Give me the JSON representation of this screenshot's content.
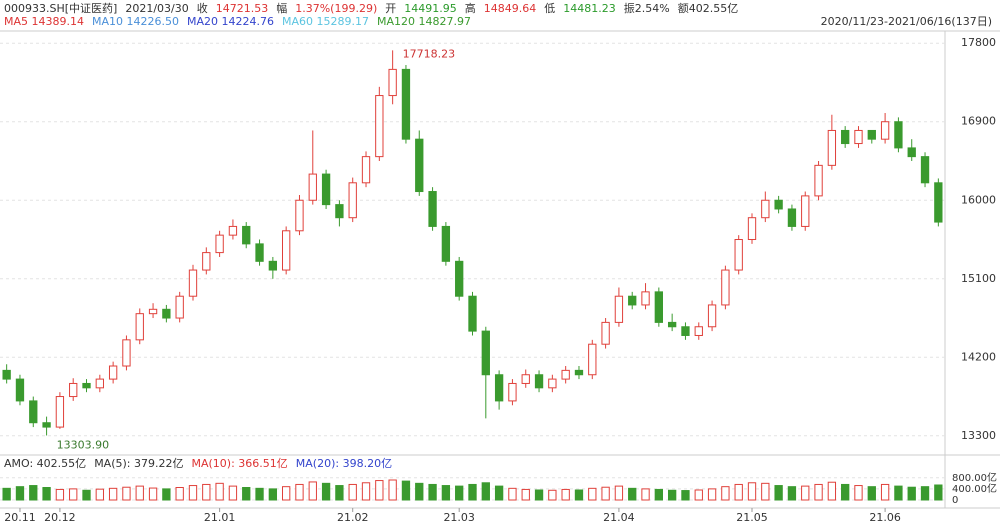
{
  "chart_data": {
    "type": "candlestick",
    "header": [
      {
        "text": "000933.SH[中证医药]",
        "color": "#333"
      },
      {
        "text": "2021/03/30",
        "color": "#333"
      },
      {
        "text": "收",
        "color": "#333"
      },
      {
        "text": "14721.53",
        "color": "#d33"
      },
      {
        "text": "幅",
        "color": "#333"
      },
      {
        "text": "1.37%(199.29)",
        "color": "#d33"
      },
      {
        "text": "开",
        "color": "#333"
      },
      {
        "text": "14491.95",
        "color": "#2a9a2a"
      },
      {
        "text": "高",
        "color": "#333"
      },
      {
        "text": "14849.64",
        "color": "#d33"
      },
      {
        "text": "低",
        "color": "#333"
      },
      {
        "text": "14481.23",
        "color": "#2a9a2a"
      },
      {
        "text": "振2.54%",
        "color": "#333"
      },
      {
        "text": "额402.55亿",
        "color": "#333"
      }
    ],
    "ma_legend": [
      {
        "text": "MA5 14389.14",
        "color": "#d33"
      },
      {
        "text": "MA10 14226.50",
        "color": "#4a8fd8"
      },
      {
        "text": "MA20 14224.76",
        "color": "#3344cc"
      },
      {
        "text": "MA60 15289.17",
        "color": "#5bc4e0"
      },
      {
        "text": "MA120 14827.97",
        "color": "#3a9a2e"
      }
    ],
    "range": "2020/11/23-2021/06/16(137日)",
    "volume_legend": [
      {
        "text": "AMO: 402.55亿",
        "color": "#333"
      },
      {
        "text": "MA(5): 379.22亿",
        "color": "#333"
      },
      {
        "text": "MA(10): 366.51亿",
        "color": "#d33"
      },
      {
        "text": "MA(20): 398.20亿",
        "color": "#3344cc"
      }
    ],
    "categories": [
      null,
      "20.11",
      null,
      null,
      "20.12",
      null,
      null,
      null,
      null,
      null,
      null,
      null,
      null,
      null,
      null,
      null,
      "21.01",
      null,
      null,
      null,
      null,
      null,
      null,
      null,
      null,
      null,
      "21.02",
      null,
      null,
      null,
      null,
      null,
      null,
      null,
      "21.03",
      null,
      null,
      null,
      null,
      null,
      null,
      null,
      null,
      null,
      null,
      null,
      "21.04",
      null,
      null,
      null,
      null,
      null,
      null,
      null,
      null,
      null,
      "21.05",
      null,
      null,
      null,
      null,
      null,
      null,
      null,
      null,
      null,
      "21.06",
      null,
      null,
      null,
      null
    ],
    "candles": [
      [
        14050,
        14120,
        13900,
        13950
      ],
      [
        13950,
        14000,
        13650,
        13700
      ],
      [
        13700,
        13750,
        13400,
        13450
      ],
      [
        13450,
        13520,
        13303.9,
        13400
      ],
      [
        13400,
        13800,
        13380,
        13750
      ],
      [
        13750,
        13960,
        13700,
        13900
      ],
      [
        13900,
        13950,
        13800,
        13850
      ],
      [
        13850,
        14000,
        13800,
        13950
      ],
      [
        13950,
        14150,
        13900,
        14100
      ],
      [
        14100,
        14450,
        14050,
        14400
      ],
      [
        14400,
        14760,
        14350,
        14700
      ],
      [
        14700,
        14820,
        14650,
        14750
      ],
      [
        14750,
        14800,
        14600,
        14650
      ],
      [
        14650,
        14950,
        14600,
        14900
      ],
      [
        14900,
        15260,
        14850,
        15200
      ],
      [
        15200,
        15460,
        15150,
        15400
      ],
      [
        15400,
        15650,
        15350,
        15600
      ],
      [
        15600,
        15780,
        15550,
        15700
      ],
      [
        15700,
        15750,
        15450,
        15500
      ],
      [
        15500,
        15550,
        15250,
        15300
      ],
      [
        15300,
        15350,
        15100,
        15200
      ],
      [
        15200,
        15700,
        15150,
        15650
      ],
      [
        15650,
        16060,
        15600,
        16000
      ],
      [
        16000,
        16800,
        15950,
        16300
      ],
      [
        16300,
        16350,
        15900,
        15950
      ],
      [
        15950,
        16000,
        15700,
        15800
      ],
      [
        15800,
        16260,
        15750,
        16200
      ],
      [
        16200,
        16560,
        16150,
        16500
      ],
      [
        16500,
        17300,
        16450,
        17200
      ],
      [
        17200,
        17718.23,
        17100,
        17500
      ],
      [
        17500,
        17550,
        16650,
        16700
      ],
      [
        16700,
        16800,
        16050,
        16100
      ],
      [
        16100,
        16150,
        15650,
        15700
      ],
      [
        15700,
        15750,
        15250,
        15300
      ],
      [
        15300,
        15350,
        14850,
        14900
      ],
      [
        14900,
        14950,
        14450,
        14500
      ],
      [
        14500,
        14550,
        13500,
        14000
      ],
      [
        14000,
        14050,
        13600,
        13700
      ],
      [
        13700,
        13950,
        13650,
        13900
      ],
      [
        13900,
        14060,
        13850,
        14000
      ],
      [
        14000,
        14050,
        13800,
        13850
      ],
      [
        13850,
        14000,
        13800,
        13950
      ],
      [
        13950,
        14100,
        13900,
        14050
      ],
      [
        14050,
        14100,
        13950,
        14000
      ],
      [
        14000,
        14400,
        13950,
        14350
      ],
      [
        14350,
        14650,
        14300,
        14600
      ],
      [
        14600,
        15000,
        14550,
        14900
      ],
      [
        14900,
        14950,
        14750,
        14800
      ],
      [
        14800,
        15050,
        14750,
        14950
      ],
      [
        14950,
        15000,
        14550,
        14600
      ],
      [
        14600,
        14700,
        14500,
        14550
      ],
      [
        14550,
        14600,
        14400,
        14450
      ],
      [
        14450,
        14600,
        14400,
        14550
      ],
      [
        14550,
        14850,
        14500,
        14800
      ],
      [
        14800,
        15250,
        14750,
        15200
      ],
      [
        15200,
        15600,
        15150,
        15550
      ],
      [
        15550,
        15850,
        15500,
        15800
      ],
      [
        15800,
        16100,
        15750,
        16000
      ],
      [
        16000,
        16050,
        15850,
        15900
      ],
      [
        15900,
        15950,
        15650,
        15700
      ],
      [
        15700,
        16100,
        15650,
        16050
      ],
      [
        16050,
        16450,
        16000,
        16400
      ],
      [
        16400,
        16980,
        16350,
        16800
      ],
      [
        16800,
        16850,
        16600,
        16650
      ],
      [
        16650,
        16850,
        16600,
        16800
      ],
      [
        16800,
        16800,
        16650,
        16700
      ],
      [
        16700,
        17000,
        16650,
        16900
      ],
      [
        16900,
        16950,
        16550,
        16600
      ],
      [
        16600,
        16700,
        16450,
        16500
      ],
      [
        16500,
        16550,
        16150,
        16200
      ],
      [
        16200,
        16250,
        15700,
        15750
      ]
    ],
    "volume": [
      420,
      480,
      520,
      450,
      380,
      400,
      350,
      390,
      420,
      460,
      500,
      430,
      400,
      450,
      520,
      560,
      600,
      500,
      450,
      420,
      400,
      480,
      560,
      650,
      600,
      520,
      560,
      620,
      700,
      720,
      680,
      600,
      560,
      520,
      500,
      560,
      620,
      500,
      420,
      380,
      360,
      350,
      380,
      360,
      420,
      460,
      500,
      420,
      400,
      380,
      350,
      340,
      360,
      400,
      480,
      560,
      620,
      600,
      520,
      480,
      500,
      560,
      640,
      560,
      520,
      480,
      560,
      500,
      460,
      480,
      540
    ],
    "annotations": [
      {
        "text": "17718.23",
        "index": 29
      },
      {
        "text": "13303.90",
        "index": 3
      }
    ],
    "ylim": [
      13080,
      17940
    ],
    "yticks": [
      13300,
      14200,
      15100,
      16000,
      16900,
      17800
    ],
    "vlim": [
      0,
      900
    ],
    "vticks": [
      {
        "value": 800,
        "label": "800.00亿"
      },
      {
        "value": 400,
        "label": "400.00亿"
      },
      0
    ],
    "up_color": "#e0403a",
    "down_color": "#3a9a2e",
    "grid": true
  }
}
